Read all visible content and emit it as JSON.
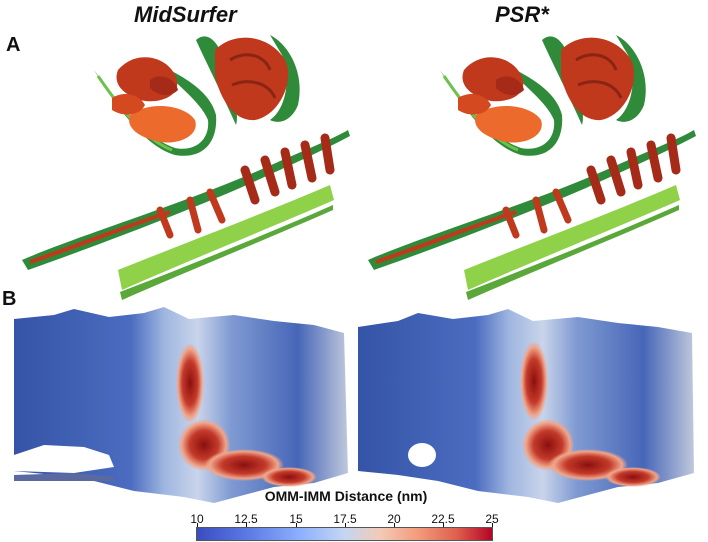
{
  "figure": {
    "panel_a_label": "A",
    "panel_b_label": "B",
    "left_title": "MidSurfer",
    "right_title": "PSR*"
  },
  "colorbar": {
    "title": "OMM-IMM Distance (nm)",
    "ticks": [
      "10",
      "12.5",
      "15",
      "17.5",
      "20",
      "22.5",
      "25"
    ],
    "min": 10,
    "max": 25,
    "colors": [
      "#3a4cc0",
      "#8db0fe",
      "#dddddd",
      "#f49a7b",
      "#b40426"
    ]
  },
  "colors": {
    "membrane_green_dark": "#2f7f3a",
    "membrane_green_light": "#8fd24a",
    "cristae_red": "#c0391c",
    "cristae_orange": "#ec6b2c",
    "heatmap_blue": "#3b57a8",
    "heatmap_red": "#8b0f0f"
  }
}
